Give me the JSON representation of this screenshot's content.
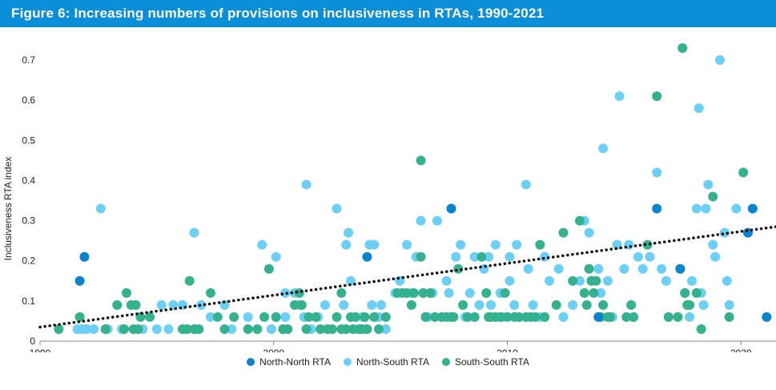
{
  "title": "Figure 6: Increasing numbers of provisions on inclusiveness in RTAs, 1990-2021",
  "colors": {
    "title_bg": "#0b8ed8",
    "north_north": "#0a84cc",
    "north_south": "#6ccff6",
    "south_south": "#34b18e",
    "trendline": "#111111"
  },
  "chart_data": {
    "type": "scatter",
    "title": "Figure 6: Increasing numbers of provisions on inclusiveness in RTAs, 1990-2021",
    "xlabel": "",
    "ylabel": "Inclusiveness RTA index",
    "xlim": [
      1990,
      2021.5
    ],
    "ylim": [
      0,
      0.75
    ],
    "x_ticks": [
      "1990",
      "2000",
      "2010",
      "2020"
    ],
    "y_ticks": [
      "0",
      "0.1",
      "0.2",
      "0.3",
      "0.4",
      "0.5",
      "0.6",
      "0.7"
    ],
    "grid": false,
    "legend_position": "bottom-center",
    "trendline": {
      "style": "dotted",
      "x": [
        1990,
        2021.5
      ],
      "y": [
        0.035,
        0.285
      ]
    },
    "series": [
      {
        "name": "North-North RTA",
        "color": "#0a84cc",
        "points": [
          [
            1991.7,
            0.15
          ],
          [
            1991.9,
            0.21
          ],
          [
            2004.0,
            0.21
          ],
          [
            2007.6,
            0.33
          ],
          [
            2013.9,
            0.06
          ],
          [
            2016.4,
            0.33
          ],
          [
            2017.4,
            0.18
          ],
          [
            2020.3,
            0.27
          ],
          [
            2020.5,
            0.33
          ],
          [
            2021.1,
            0.06
          ]
        ]
      },
      {
        "name": "North-South RTA",
        "color": "#6ccff6",
        "points": [
          [
            1991.6,
            0.03
          ],
          [
            1991.8,
            0.03
          ],
          [
            1992.0,
            0.03
          ],
          [
            1992.3,
            0.03
          ],
          [
            1992.6,
            0.33
          ],
          [
            1992.9,
            0.03
          ],
          [
            1993.5,
            0.03
          ],
          [
            1994.4,
            0.03
          ],
          [
            1995.0,
            0.03
          ],
          [
            1995.2,
            0.09
          ],
          [
            1995.5,
            0.03
          ],
          [
            1995.7,
            0.09
          ],
          [
            1996.1,
            0.09
          ],
          [
            1996.6,
            0.03
          ],
          [
            1996.6,
            0.27
          ],
          [
            1996.9,
            0.09
          ],
          [
            1997.3,
            0.06
          ],
          [
            1997.9,
            0.09
          ],
          [
            1998.2,
            0.03
          ],
          [
            1998.9,
            0.06
          ],
          [
            1999.5,
            0.24
          ],
          [
            1999.9,
            0.03
          ],
          [
            2000.1,
            0.06
          ],
          [
            2000.1,
            0.21
          ],
          [
            2000.4,
            0.03
          ],
          [
            2000.5,
            0.12
          ],
          [
            2000.5,
            0.06
          ],
          [
            2000.9,
            0.12
          ],
          [
            2001.1,
            0.09
          ],
          [
            2001.3,
            0.06
          ],
          [
            2001.4,
            0.39
          ],
          [
            2001.6,
            0.03
          ],
          [
            2001.9,
            0.06
          ],
          [
            2002.2,
            0.09
          ],
          [
            2002.5,
            0.03
          ],
          [
            2002.7,
            0.33
          ],
          [
            2003.0,
            0.09
          ],
          [
            2003.1,
            0.24
          ],
          [
            2003.2,
            0.27
          ],
          [
            2003.3,
            0.15
          ],
          [
            2003.6,
            0.03
          ],
          [
            2003.8,
            0.06
          ],
          [
            2004.1,
            0.24
          ],
          [
            2004.2,
            0.09
          ],
          [
            2004.3,
            0.24
          ],
          [
            2004.5,
            0.06
          ],
          [
            2004.6,
            0.09
          ],
          [
            2004.8,
            0.03
          ],
          [
            2005.2,
            0.12
          ],
          [
            2005.4,
            0.15
          ],
          [
            2005.7,
            0.24
          ],
          [
            2005.9,
            0.12
          ],
          [
            2006.1,
            0.21
          ],
          [
            2006.3,
            0.3
          ],
          [
            2006.4,
            0.12
          ],
          [
            2006.6,
            0.06
          ],
          [
            2006.8,
            0.12
          ],
          [
            2007.0,
            0.3
          ],
          [
            2007.2,
            0.06
          ],
          [
            2007.4,
            0.15
          ],
          [
            2007.5,
            0.12
          ],
          [
            2007.8,
            0.21
          ],
          [
            2008.0,
            0.24
          ],
          [
            2008.2,
            0.06
          ],
          [
            2008.4,
            0.12
          ],
          [
            2008.6,
            0.21
          ],
          [
            2008.8,
            0.09
          ],
          [
            2009.0,
            0.18
          ],
          [
            2009.2,
            0.21
          ],
          [
            2009.3,
            0.09
          ],
          [
            2009.5,
            0.24
          ],
          [
            2009.7,
            0.12
          ],
          [
            2009.8,
            0.06
          ],
          [
            2010.1,
            0.21
          ],
          [
            2010.1,
            0.15
          ],
          [
            2010.3,
            0.09
          ],
          [
            2010.4,
            0.24
          ],
          [
            2010.5,
            0.06
          ],
          [
            2010.8,
            0.39
          ],
          [
            2010.9,
            0.18
          ],
          [
            2011.1,
            0.09
          ],
          [
            2011.4,
            0.06
          ],
          [
            2011.6,
            0.21
          ],
          [
            2011.8,
            0.15
          ],
          [
            2012.2,
            0.18
          ],
          [
            2012.4,
            0.06
          ],
          [
            2012.8,
            0.09
          ],
          [
            2013.1,
            0.15
          ],
          [
            2013.3,
            0.3
          ],
          [
            2013.5,
            0.27
          ],
          [
            2013.6,
            0.15
          ],
          [
            2013.9,
            0.18
          ],
          [
            2014.0,
            0.12
          ],
          [
            2014.1,
            0.48
          ],
          [
            2014.3,
            0.15
          ],
          [
            2014.5,
            0.06
          ],
          [
            2014.7,
            0.24
          ],
          [
            2014.8,
            0.61
          ],
          [
            2015.0,
            0.18
          ],
          [
            2015.2,
            0.24
          ],
          [
            2015.4,
            0.06
          ],
          [
            2015.6,
            0.21
          ],
          [
            2015.8,
            0.18
          ],
          [
            2016.1,
            0.21
          ],
          [
            2016.4,
            0.42
          ],
          [
            2016.6,
            0.18
          ],
          [
            2016.8,
            0.15
          ],
          [
            2016.9,
            0.06
          ],
          [
            2017.4,
            0.18
          ],
          [
            2017.6,
            0.12
          ],
          [
            2017.8,
            0.06
          ],
          [
            2017.9,
            0.15
          ],
          [
            2018.1,
            0.33
          ],
          [
            2018.2,
            0.58
          ],
          [
            2018.3,
            0.12
          ],
          [
            2018.4,
            0.09
          ],
          [
            2018.5,
            0.33
          ],
          [
            2018.6,
            0.39
          ],
          [
            2018.8,
            0.24
          ],
          [
            2018.9,
            0.21
          ],
          [
            2019.1,
            0.7
          ],
          [
            2019.3,
            0.27
          ],
          [
            2019.4,
            0.15
          ],
          [
            2019.5,
            0.09
          ],
          [
            2019.8,
            0.33
          ]
        ]
      },
      {
        "name": "South-South RTA",
        "color": "#34b18e",
        "points": [
          [
            1990.8,
            0.03
          ],
          [
            1991.7,
            0.06
          ],
          [
            1992.8,
            0.03
          ],
          [
            1993.3,
            0.09
          ],
          [
            1993.6,
            0.03
          ],
          [
            1993.7,
            0.12
          ],
          [
            1993.9,
            0.09
          ],
          [
            1994.0,
            0.03
          ],
          [
            1994.1,
            0.09
          ],
          [
            1994.2,
            0.03
          ],
          [
            1994.3,
            0.06
          ],
          [
            1994.7,
            0.06
          ],
          [
            1996.1,
            0.03
          ],
          [
            1996.3,
            0.03
          ],
          [
            1996.4,
            0.15
          ],
          [
            1996.6,
            0.03
          ],
          [
            1996.8,
            0.03
          ],
          [
            1997.3,
            0.12
          ],
          [
            1997.6,
            0.06
          ],
          [
            1997.9,
            0.03
          ],
          [
            1998.3,
            0.06
          ],
          [
            1998.9,
            0.03
          ],
          [
            1999.3,
            0.03
          ],
          [
            1999.6,
            0.06
          ],
          [
            1999.8,
            0.18
          ],
          [
            2000.1,
            0.06
          ],
          [
            2000.4,
            0.03
          ],
          [
            2000.6,
            0.03
          ],
          [
            2000.9,
            0.09
          ],
          [
            2001.1,
            0.12
          ],
          [
            2001.2,
            0.09
          ],
          [
            2001.4,
            0.03
          ],
          [
            2001.5,
            0.06
          ],
          [
            2001.8,
            0.06
          ],
          [
            2002.0,
            0.03
          ],
          [
            2002.3,
            0.03
          ],
          [
            2002.5,
            0.03
          ],
          [
            2002.7,
            0.06
          ],
          [
            2002.9,
            0.12
          ],
          [
            2002.9,
            0.03
          ],
          [
            2003.1,
            0.03
          ],
          [
            2003.3,
            0.06
          ],
          [
            2003.4,
            0.03
          ],
          [
            2003.5,
            0.06
          ],
          [
            2003.7,
            0.03
          ],
          [
            2003.8,
            0.03
          ],
          [
            2003.9,
            0.06
          ],
          [
            2004.0,
            0.03
          ],
          [
            2004.3,
            0.06
          ],
          [
            2004.5,
            0.03
          ],
          [
            2004.8,
            0.06
          ],
          [
            2005.3,
            0.12
          ],
          [
            2005.5,
            0.12
          ],
          [
            2005.7,
            0.12
          ],
          [
            2005.9,
            0.09
          ],
          [
            2006.0,
            0.12
          ],
          [
            2006.3,
            0.45
          ],
          [
            2006.3,
            0.21
          ],
          [
            2006.4,
            0.12
          ],
          [
            2006.5,
            0.06
          ],
          [
            2006.7,
            0.12
          ],
          [
            2006.9,
            0.06
          ],
          [
            2007.2,
            0.06
          ],
          [
            2007.4,
            0.06
          ],
          [
            2007.6,
            0.06
          ],
          [
            2007.7,
            0.06
          ],
          [
            2007.9,
            0.18
          ],
          [
            2008.1,
            0.09
          ],
          [
            2008.3,
            0.06
          ],
          [
            2008.6,
            0.06
          ],
          [
            2008.9,
            0.21
          ],
          [
            2009.1,
            0.12
          ],
          [
            2009.2,
            0.06
          ],
          [
            2009.3,
            0.06
          ],
          [
            2009.5,
            0.06
          ],
          [
            2009.7,
            0.06
          ],
          [
            2009.9,
            0.12
          ],
          [
            2010.0,
            0.06
          ],
          [
            2010.3,
            0.06
          ],
          [
            2010.5,
            0.06
          ],
          [
            2010.8,
            0.06
          ],
          [
            2011.0,
            0.06
          ],
          [
            2011.2,
            0.06
          ],
          [
            2011.4,
            0.24
          ],
          [
            2011.6,
            0.06
          ],
          [
            2012.1,
            0.09
          ],
          [
            2012.4,
            0.27
          ],
          [
            2012.8,
            0.15
          ],
          [
            2013.1,
            0.3
          ],
          [
            2013.3,
            0.12
          ],
          [
            2013.4,
            0.09
          ],
          [
            2013.5,
            0.18
          ],
          [
            2013.6,
            0.15
          ],
          [
            2013.7,
            0.12
          ],
          [
            2013.8,
            0.15
          ],
          [
            2014.0,
            0.06
          ],
          [
            2014.1,
            0.09
          ],
          [
            2014.3,
            0.06
          ],
          [
            2014.4,
            0.06
          ],
          [
            2015.1,
            0.06
          ],
          [
            2015.3,
            0.09
          ],
          [
            2015.4,
            0.06
          ],
          [
            2016.0,
            0.24
          ],
          [
            2016.4,
            0.61
          ],
          [
            2016.9,
            0.06
          ],
          [
            2017.3,
            0.06
          ],
          [
            2017.5,
            0.73
          ],
          [
            2017.6,
            0.12
          ],
          [
            2017.7,
            0.09
          ],
          [
            2017.8,
            0.09
          ],
          [
            2018.1,
            0.12
          ],
          [
            2018.3,
            0.03
          ],
          [
            2018.8,
            0.36
          ],
          [
            2019.5,
            0.06
          ],
          [
            2020.1,
            0.42
          ]
        ]
      }
    ]
  }
}
